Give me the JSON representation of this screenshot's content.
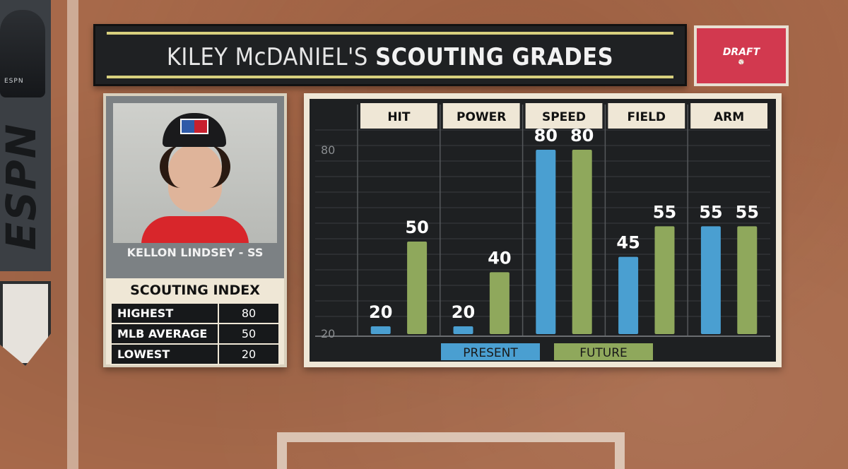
{
  "header": {
    "title_normal": "KILEY McDANIEL'S",
    "title_bold": "SCOUTING GRADES"
  },
  "network": {
    "logo_text": "ESPN",
    "helmet_label": "ESPN"
  },
  "badge": {
    "label": "DRAFT",
    "brand_color": "#d2394f"
  },
  "player": {
    "name": "KELLON LINDSEY - SS"
  },
  "scouting_index": {
    "title": "SCOUTING INDEX",
    "rows": [
      {
        "label": "HIGHEST",
        "value": "80"
      },
      {
        "label": "MLB AVERAGE",
        "value": "50"
      },
      {
        "label": "LOWEST",
        "value": "20"
      }
    ]
  },
  "chart_data": {
    "type": "bar",
    "categories": [
      "HIT",
      "POWER",
      "SPEED",
      "FIELD",
      "ARM"
    ],
    "series": [
      {
        "name": "PRESENT",
        "values": [
          20,
          20,
          80,
          45,
          55
        ],
        "color": "#4a9fd1"
      },
      {
        "name": "FUTURE",
        "values": [
          50,
          40,
          80,
          55,
          55
        ],
        "color": "#8fa85c"
      }
    ],
    "ylim": [
      20,
      80
    ],
    "ytick_labels": [
      "80",
      "20"
    ],
    "legend_placement": "bottom",
    "grid": true,
    "data_labels": true,
    "title": "",
    "xlabel": "",
    "ylabel": ""
  }
}
